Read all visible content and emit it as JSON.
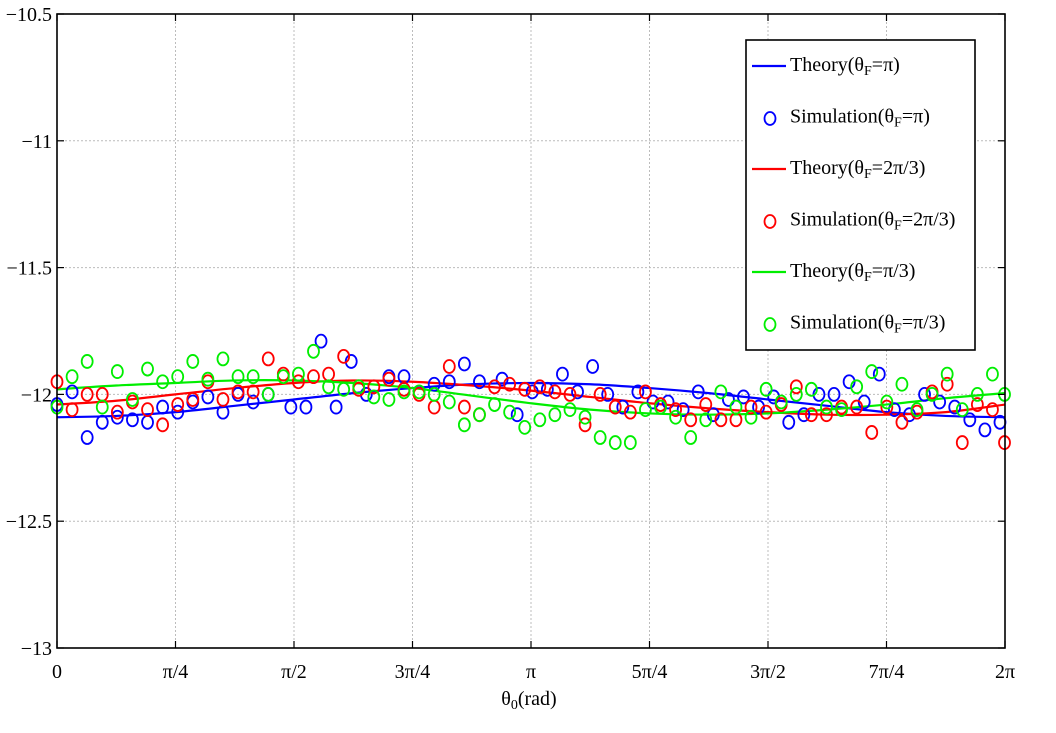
{
  "chart_data": {
    "type": "line",
    "xlabel": "θ0(rad)",
    "ylabel": "",
    "xlim": [
      0,
      6.283185
    ],
    "ylim": [
      -13,
      -10.5
    ],
    "grid": true,
    "legend_position": "top-right",
    "x_ticks": [
      {
        "value": 0,
        "label": "0"
      },
      {
        "value": 0.785398,
        "label": "π/4"
      },
      {
        "value": 1.570796,
        "label": "π/2"
      },
      {
        "value": 2.356194,
        "label": "3π/4"
      },
      {
        "value": 3.141593,
        "label": "π"
      },
      {
        "value": 3.926991,
        "label": "5π/4"
      },
      {
        "value": 4.712389,
        "label": "3π/2"
      },
      {
        "value": 5.497787,
        "label": "7π/4"
      },
      {
        "value": 6.283185,
        "label": "2π"
      }
    ],
    "y_ticks": [
      {
        "value": -10.5,
        "label": "−10.5"
      },
      {
        "value": -11,
        "label": "−11"
      },
      {
        "value": -11.5,
        "label": "−11.5"
      },
      {
        "value": -12,
        "label": "−12"
      },
      {
        "value": -12.5,
        "label": "−12.5"
      },
      {
        "value": -13,
        "label": "−13"
      }
    ],
    "series": [
      {
        "name": "Theory(θF=π)",
        "kind": "line",
        "color": "#0000ff",
        "x": [
          0,
          0.3927,
          0.7854,
          1.1781,
          1.5708,
          1.9635,
          2.3562,
          2.7489,
          3.1416,
          3.5343,
          3.927,
          4.3197,
          4.7124,
          5.1051,
          5.4978,
          5.8905,
          6.2832
        ],
        "values": [
          -12.09,
          -12.085,
          -12.07,
          -12.045,
          -12.02,
          -11.995,
          -11.975,
          -11.96,
          -11.955,
          -11.96,
          -11.975,
          -11.995,
          -12.02,
          -12.045,
          -12.07,
          -12.085,
          -12.09
        ]
      },
      {
        "name": "Simulation(θF=π)",
        "kind": "scatter",
        "color": "#0000ff",
        "x": [
          0,
          0.1,
          0.2,
          0.3,
          0.4,
          0.5,
          0.6,
          0.7,
          0.8,
          0.9,
          1.0,
          1.1,
          1.2,
          1.3,
          1.4,
          1.55,
          1.65,
          1.75,
          1.85,
          1.95,
          2.05,
          2.2,
          2.3,
          2.5,
          2.6,
          2.7,
          2.8,
          2.95,
          3.05,
          3.15,
          3.25,
          3.35,
          3.45,
          3.55,
          3.65,
          3.75,
          3.85,
          3.95,
          4.05,
          4.15,
          4.25,
          4.35,
          4.45,
          4.55,
          4.65,
          4.75,
          4.85,
          4.95,
          5.05,
          5.15,
          5.25,
          5.35,
          5.45,
          5.55,
          5.65,
          5.75,
          5.85,
          5.95,
          6.05,
          6.15,
          6.25
        ],
        "values": [
          -12.04,
          -11.99,
          -12.17,
          -12.11,
          -12.09,
          -12.1,
          -12.11,
          -12.05,
          -12.07,
          -12.03,
          -12.01,
          -12.07,
          -12.0,
          -12.03,
          -12.0,
          -12.05,
          -12.05,
          -11.79,
          -12.05,
          -11.87,
          -12.0,
          -11.93,
          -11.93,
          -11.96,
          -11.95,
          -11.88,
          -11.95,
          -11.94,
          -12.08,
          -11.99,
          -11.98,
          -11.92,
          -11.99,
          -11.89,
          -12.0,
          -12.05,
          -11.99,
          -12.03,
          -12.03,
          -12.06,
          -11.99,
          -12.08,
          -12.02,
          -12.01,
          -12.05,
          -12.01,
          -12.11,
          -12.08,
          -12.0,
          -12.0,
          -11.95,
          -12.03,
          -11.92,
          -12.06,
          -12.08,
          -12.0,
          -12.03,
          -12.05,
          -12.1,
          -12.14,
          -12.11
        ]
      },
      {
        "name": "Theory(θF=2π/3)",
        "kind": "line",
        "color": "#ff0000",
        "x": [
          0,
          0.3927,
          0.7854,
          1.1781,
          1.5708,
          1.9635,
          2.3562,
          2.7489,
          3.1416,
          3.5343,
          3.927,
          4.3197,
          4.7124,
          5.1051,
          5.4978,
          5.8905,
          6.2832
        ],
        "values": [
          -12.04,
          -12.025,
          -12.0,
          -11.975,
          -11.955,
          -11.945,
          -11.95,
          -11.965,
          -11.985,
          -12.01,
          -12.035,
          -12.055,
          -12.07,
          -12.08,
          -12.08,
          -12.07,
          -12.04
        ]
      },
      {
        "name": "Simulation(θF=2π/3)",
        "kind": "scatter",
        "color": "#ff0000",
        "x": [
          0,
          0.1,
          0.2,
          0.3,
          0.4,
          0.5,
          0.6,
          0.7,
          0.8,
          0.9,
          1.0,
          1.1,
          1.2,
          1.3,
          1.4,
          1.5,
          1.6,
          1.7,
          1.8,
          1.9,
          2.0,
          2.1,
          2.2,
          2.3,
          2.4,
          2.5,
          2.6,
          2.7,
          2.8,
          2.9,
          3.0,
          3.1,
          3.2,
          3.3,
          3.4,
          3.5,
          3.6,
          3.7,
          3.8,
          3.9,
          4.0,
          4.1,
          4.2,
          4.3,
          4.4,
          4.5,
          4.6,
          4.7,
          4.8,
          4.9,
          5.0,
          5.1,
          5.2,
          5.3,
          5.4,
          5.5,
          5.6,
          5.7,
          5.8,
          5.9,
          6.0,
          6.1,
          6.2,
          6.28
        ],
        "values": [
          -11.95,
          -12.06,
          -12.0,
          -12.0,
          -12.07,
          -12.03,
          -12.06,
          -12.12,
          -12.04,
          -12.02,
          -11.95,
          -12.02,
          -11.99,
          -11.99,
          -11.86,
          -11.92,
          -11.95,
          -11.93,
          -11.92,
          -11.85,
          -11.98,
          -11.97,
          -11.94,
          -11.98,
          -12.0,
          -12.05,
          -11.89,
          -12.05,
          -12.08,
          -11.97,
          -11.96,
          -11.98,
          -11.97,
          -11.99,
          -12.0,
          -12.12,
          -12.0,
          -12.05,
          -12.07,
          -11.99,
          -12.04,
          -12.06,
          -12.1,
          -12.04,
          -12.1,
          -12.1,
          -12.05,
          -12.07,
          -12.04,
          -11.97,
          -12.08,
          -12.08,
          -12.05,
          -12.05,
          -12.15,
          -12.05,
          -12.11,
          -12.07,
          -11.99,
          -11.96,
          -12.19,
          -12.04,
          -12.06,
          -12.19
        ]
      },
      {
        "name": "Theory(θF=π/3)",
        "kind": "line",
        "color": "#00ee00",
        "x": [
          0,
          0.3927,
          0.7854,
          1.1781,
          1.5708,
          1.9635,
          2.3562,
          2.7489,
          3.1416,
          3.5343,
          3.927,
          4.3197,
          4.7124,
          5.1051,
          5.4978,
          5.8905,
          6.2832
        ],
        "values": [
          -11.98,
          -11.965,
          -11.955,
          -11.945,
          -11.945,
          -11.955,
          -11.975,
          -12.005,
          -12.035,
          -12.06,
          -12.075,
          -12.08,
          -12.075,
          -12.06,
          -12.04,
          -12.015,
          -11.995
        ]
      },
      {
        "name": "Simulation(θF=π/3)",
        "kind": "scatter",
        "color": "#00ee00",
        "x": [
          0,
          0.1,
          0.2,
          0.3,
          0.4,
          0.5,
          0.6,
          0.7,
          0.8,
          0.9,
          1.0,
          1.1,
          1.2,
          1.3,
          1.4,
          1.5,
          1.6,
          1.7,
          1.8,
          1.9,
          2.0,
          2.1,
          2.2,
          2.3,
          2.4,
          2.5,
          2.6,
          2.7,
          2.8,
          2.9,
          3.0,
          3.1,
          3.2,
          3.3,
          3.4,
          3.5,
          3.6,
          3.7,
          3.8,
          3.9,
          4.0,
          4.1,
          4.2,
          4.3,
          4.4,
          4.5,
          4.6,
          4.7,
          4.8,
          4.9,
          5.0,
          5.1,
          5.2,
          5.3,
          5.4,
          5.5,
          5.6,
          5.7,
          5.8,
          5.9,
          6.0,
          6.1,
          6.2,
          6.28
        ],
        "values": [
          -12.05,
          -11.93,
          -11.87,
          -12.05,
          -11.91,
          -12.02,
          -11.9,
          -11.95,
          -11.93,
          -11.87,
          -11.94,
          -11.86,
          -11.93,
          -11.93,
          -12.0,
          -11.93,
          -11.92,
          -11.83,
          -11.97,
          -11.98,
          -11.97,
          -12.01,
          -12.02,
          -11.99,
          -11.99,
          -12.0,
          -12.03,
          -12.12,
          -12.08,
          -12.04,
          -12.07,
          -12.13,
          -12.1,
          -12.08,
          -12.06,
          -12.09,
          -12.17,
          -12.19,
          -12.19,
          -12.06,
          -12.05,
          -12.09,
          -12.17,
          -12.1,
          -11.99,
          -12.05,
          -12.09,
          -11.98,
          -12.03,
          -12.0,
          -11.98,
          -12.05,
          -12.06,
          -11.97,
          -11.91,
          -12.03,
          -11.96,
          -12.06,
          -12.0,
          -11.92,
          -12.06,
          -12.0,
          -11.92,
          -12.0
        ]
      }
    ]
  }
}
